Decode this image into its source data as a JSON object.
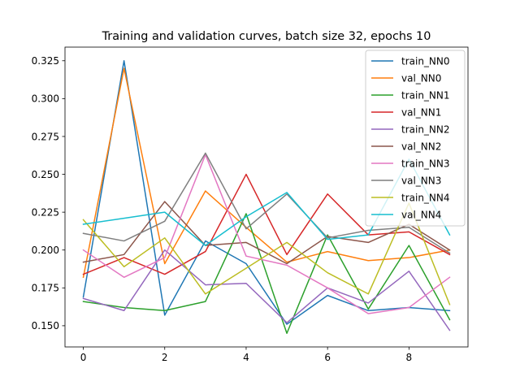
{
  "chart_data": {
    "type": "line",
    "title": "Training and validation curves, batch size 32, epochs 10",
    "xlabel": "",
    "ylabel": "",
    "xlim": [
      -0.45,
      9.45
    ],
    "ylim": [
      0.136,
      0.334
    ],
    "x": [
      0,
      1,
      2,
      3,
      4,
      5,
      6,
      7,
      8,
      9
    ],
    "xticks": [
      0,
      2,
      4,
      6,
      8
    ],
    "yticks": [
      0.15,
      0.175,
      0.2,
      0.225,
      0.25,
      0.275,
      0.3,
      0.325
    ],
    "ytick_labels": [
      "0.150",
      "0.175",
      "0.200",
      "0.225",
      "0.250",
      "0.275",
      "0.300",
      "0.325"
    ],
    "grid": false,
    "legend_position": "top-right",
    "series": [
      {
        "name": "train_NN0",
        "color": "#1f77b4",
        "values": [
          0.169,
          0.325,
          0.157,
          0.206,
          0.191,
          0.151,
          0.17,
          0.16,
          0.162,
          0.16
        ]
      },
      {
        "name": "val_NN0",
        "color": "#ff7f0e",
        "values": [
          0.182,
          0.32,
          0.191,
          0.239,
          0.215,
          0.192,
          0.199,
          0.193,
          0.195,
          0.2
        ]
      },
      {
        "name": "train_NN1",
        "color": "#2ca02c",
        "values": [
          0.166,
          0.162,
          0.16,
          0.166,
          0.224,
          0.145,
          0.21,
          0.161,
          0.203,
          0.154
        ]
      },
      {
        "name": "val_NN1",
        "color": "#d62728",
        "values": [
          0.184,
          0.195,
          0.184,
          0.199,
          0.25,
          0.197,
          0.237,
          0.21,
          0.212,
          0.197
        ]
      },
      {
        "name": "train_NN2",
        "color": "#9467bd",
        "values": [
          0.168,
          0.16,
          0.2,
          0.177,
          0.178,
          0.152,
          0.175,
          0.165,
          0.186,
          0.147
        ]
      },
      {
        "name": "val_NN2",
        "color": "#8c564b",
        "values": [
          0.192,
          0.197,
          0.232,
          0.203,
          0.205,
          0.191,
          0.209,
          0.205,
          0.217,
          0.2
        ]
      },
      {
        "name": "train_NN3",
        "color": "#e377c2",
        "values": [
          0.2,
          0.182,
          0.195,
          0.263,
          0.196,
          0.19,
          0.175,
          0.158,
          0.162,
          0.182
        ]
      },
      {
        "name": "val_NN3",
        "color": "#7f7f7f",
        "values": [
          0.211,
          0.206,
          0.219,
          0.264,
          0.214,
          0.237,
          0.208,
          0.213,
          0.215,
          0.198
        ]
      },
      {
        "name": "train_NN4",
        "color": "#bcbd22",
        "values": [
          0.22,
          0.189,
          0.208,
          0.171,
          0.188,
          0.205,
          0.185,
          0.171,
          0.231,
          0.164
        ]
      },
      {
        "name": "val_NN4",
        "color": "#17becf",
        "values": [
          0.217,
          0.221,
          0.225,
          0.203,
          0.222,
          0.238,
          0.207,
          0.21,
          0.26,
          0.21
        ]
      }
    ]
  }
}
